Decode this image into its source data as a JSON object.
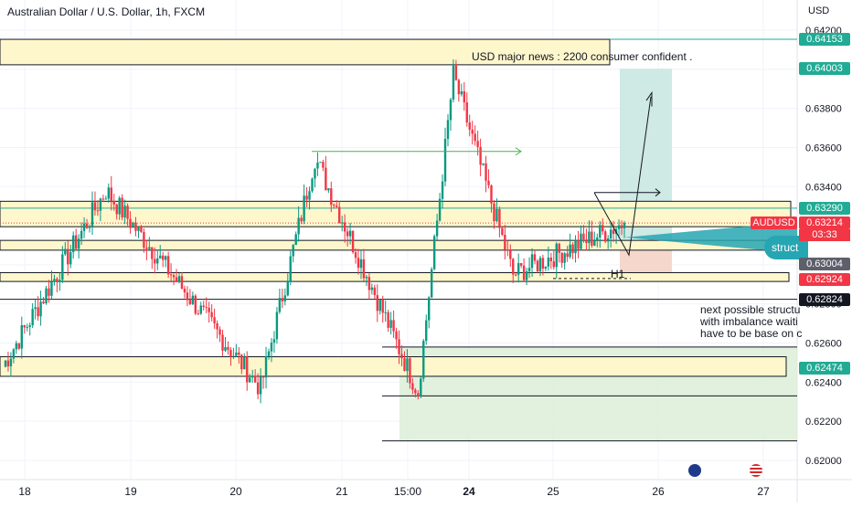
{
  "header": {
    "title": "Australian Dollar / U.S. Dollar, 1h, FXCM",
    "currency": "USD"
  },
  "annotations": {
    "news": "USD major news : 2200 consumer confident .",
    "structure_tab": "struct",
    "h1_label": "H1",
    "note_lines": [
      "next possible structu",
      "with imbalance waiti",
      "have to be base on c"
    ]
  },
  "price_tags": [
    {
      "value": "0.64153",
      "price": 0.64153,
      "color": "#22ab94"
    },
    {
      "value": "0.64003",
      "price": 0.64003,
      "color": "#22ab94"
    },
    {
      "value": "0.63290",
      "price": 0.6329,
      "color": "#22ab94"
    },
    {
      "value": "0.63214",
      "price": 0.63214,
      "color": "#f23645"
    },
    {
      "value": "0.63004",
      "price": 0.63004,
      "color": "#5d606b"
    },
    {
      "value": "0.62924",
      "price": 0.62924,
      "color": "#f23645"
    },
    {
      "value": "0.62824",
      "price": 0.62824,
      "color": "#131722"
    },
    {
      "value": "0.62474",
      "price": 0.62474,
      "color": "#22ab94"
    }
  ],
  "symbol_tag": "AUDUSD",
  "countdown": "03:33",
  "chart_data": {
    "type": "candlestick",
    "title": "Australian Dollar / U.S. Dollar, 1h, FXCM",
    "ylim": [
      0.6197,
      0.6426
    ],
    "y_ticks": [
      "0.64200",
      "0.64000",
      "0.63800",
      "0.63600",
      "0.63400",
      "0.63200",
      "0.63000",
      "0.62800",
      "0.62600",
      "0.62400",
      "0.62200",
      "0.62000"
    ],
    "x_ticks": [
      "18",
      "19",
      "20",
      "21",
      "15:00",
      "24",
      "25",
      "26",
      "27"
    ],
    "grid": true,
    "zones": [
      {
        "top": 0.64153,
        "bottom": 0.64023,
        "color": "#fff7cc"
      },
      {
        "top": 0.63325,
        "bottom": 0.63195,
        "color": "#fff7cc"
      },
      {
        "top": 0.63125,
        "bottom": 0.63075,
        "color": "#fff7cc"
      },
      {
        "top": 0.6296,
        "bottom": 0.62915,
        "color": "#fff7cc"
      },
      {
        "top": 0.6253,
        "bottom": 0.6243,
        "color": "#fff7cc"
      }
    ],
    "key_points": [
      {
        "label": "open",
        "price": 0.6248
      },
      {
        "label": "19 high",
        "price": 0.6338
      },
      {
        "label": "20 low",
        "price": 0.6237
      },
      {
        "label": "21 high",
        "price": 0.6355
      },
      {
        "label": "23 low",
        "price": 0.6235
      },
      {
        "label": "24 high",
        "price": 0.6397
      },
      {
        "label": "25 low",
        "price": 0.6295
      },
      {
        "label": "last",
        "price": 0.63214
      }
    ],
    "trade_plan": {
      "entry": 0.6309,
      "target": 0.64003,
      "stop": 0.62924
    }
  }
}
